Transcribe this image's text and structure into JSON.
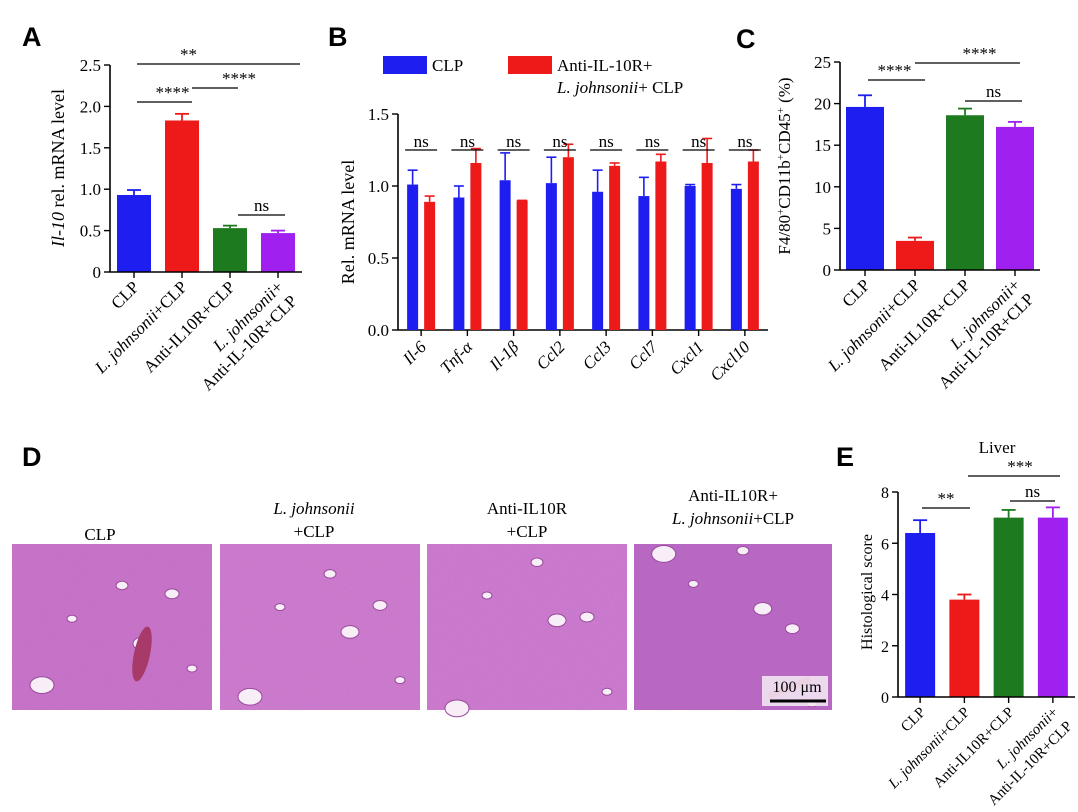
{
  "panel_letters": [
    "A",
    "B",
    "C",
    "D",
    "E"
  ],
  "colors": {
    "blue": "#1e1ef0",
    "red": "#ee1a1a",
    "green": "#1e7a1e",
    "purple": "#a020f0",
    "err": "#000000"
  },
  "chart_data": [
    {
      "panel": "A",
      "type": "bar",
      "ylabel_italic": "Il-10",
      "ylabel_rest": " rel. mRNA level",
      "ylim": [
        0,
        2.5
      ],
      "yticks": [
        "0",
        "0.5",
        "1.0",
        "1.5",
        "2.0",
        "2.5"
      ],
      "categories": [
        {
          "label": "CLP"
        },
        {
          "label_italic": "L. johnsonii",
          "label": "+CLP"
        },
        {
          "label": "Anti-IL10R+CLP"
        },
        {
          "label_italic": "L. johnsonii",
          "label": "+",
          "label2": "Anti-IL-10R+CLP"
        }
      ],
      "values": [
        0.93,
        1.83,
        0.53,
        0.47
      ],
      "errors": [
        0.06,
        0.08,
        0.03,
        0.03
      ],
      "significance": [
        {
          "text": "**",
          "from": 0,
          "to": 2
        },
        {
          "text": "****",
          "from": 1,
          "to": 2
        },
        {
          "text": "****",
          "from": 0,
          "to": 1
        },
        {
          "text": "ns",
          "from": 2,
          "to": 3
        }
      ]
    },
    {
      "panel": "B",
      "type": "bar",
      "ylabel": "Rel. mRNA level",
      "ylim": [
        0,
        1.5
      ],
      "yticks": [
        "0.0",
        "0.5",
        "1.0",
        "1.5"
      ],
      "legend": [
        {
          "name": "CLP"
        },
        {
          "name": "Anti-IL-10R+",
          "name_italic": "L. johnsonii",
          "name_rest": "+ CLP"
        }
      ],
      "categories": [
        "Il-6",
        "Tnf-α",
        "Il-1β",
        "Ccl2",
        "Ccl3",
        "Ccl7",
        "Cxcl1",
        "Cxcl10"
      ],
      "series": [
        {
          "name": "CLP",
          "values": [
            1.01,
            0.92,
            1.04,
            1.02,
            0.96,
            0.93,
            1.0,
            0.98
          ],
          "errors": [
            0.1,
            0.08,
            0.19,
            0.18,
            0.15,
            0.13,
            0.01,
            0.03
          ]
        },
        {
          "name": "Anti-IL-10R+L. johnsonii+ CLP",
          "values": [
            0.89,
            1.16,
            0.9,
            1.2,
            1.14,
            1.17,
            1.16,
            1.17
          ],
          "errors": [
            0.04,
            0.1,
            0.0,
            0.09,
            0.02,
            0.05,
            0.17,
            0.08
          ]
        }
      ],
      "significance": [
        "ns",
        "ns",
        "ns",
        "ns",
        "ns",
        "ns",
        "ns",
        "ns"
      ]
    },
    {
      "panel": "C",
      "type": "bar",
      "ylabel_parts": [
        {
          "t": "F4/80"
        },
        {
          "t": "+",
          "sup": true
        },
        {
          "t": "CD11b"
        },
        {
          "t": "+",
          "sup": true
        },
        {
          "t": "CD45"
        },
        {
          "t": "+",
          "sup": true
        },
        {
          "t": " (%)"
        }
      ],
      "ylim": [
        0,
        25
      ],
      "yticks": [
        "0",
        "5",
        "10",
        "15",
        "20",
        "25"
      ],
      "categories": [
        {
          "label": "CLP"
        },
        {
          "label_italic": "L. johnsonii",
          "label": "+CLP"
        },
        {
          "label": "Anti-IL10R+CLP"
        },
        {
          "label_italic": "L. johnsonii",
          "label": "+",
          "label2": "Anti-IL-10R+CLP"
        }
      ],
      "values": [
        19.6,
        3.5,
        18.6,
        17.2
      ],
      "errors": [
        1.4,
        0.4,
        0.8,
        0.6
      ],
      "significance": [
        {
          "text": "****",
          "from": 0,
          "to": 1
        },
        {
          "text": "****",
          "from": 1,
          "to": 3
        },
        {
          "text": "ns",
          "from": 2,
          "to": 3
        }
      ]
    },
    {
      "panel": "E",
      "type": "bar",
      "title": "Liver",
      "ylabel": "Histological score",
      "ylim": [
        0,
        8
      ],
      "yticks": [
        "0",
        "2",
        "4",
        "6",
        "8"
      ],
      "categories": [
        {
          "label": "CLP"
        },
        {
          "label_italic": "L. johnsonii",
          "label": "+CLP"
        },
        {
          "label": "Anti-IL10R+CLP"
        },
        {
          "label_italic": "L. johnsonii",
          "label": "+",
          "label2": "Anti-IL-10R+CLP"
        }
      ],
      "values": [
        6.4,
        3.8,
        7.0,
        7.0
      ],
      "errors": [
        0.5,
        0.2,
        0.3,
        0.4
      ],
      "significance": [
        {
          "text": "**",
          "from": 0,
          "to": 1
        },
        {
          "text": "***",
          "from": 1,
          "to": 3
        },
        {
          "text": "ns",
          "from": 2,
          "to": 3
        }
      ]
    }
  ],
  "histology": {
    "panels": [
      {
        "name": "clp",
        "title_lines": [
          {
            "t": "CLP"
          }
        ]
      },
      {
        "name": "ljohnsonii-clp",
        "title_lines": [
          {
            "t": "L. johnsonii",
            "italic": true
          },
          {
            "t": "+CLP"
          }
        ]
      },
      {
        "name": "anti-il10r-clp",
        "title_lines": [
          {
            "t": "Anti-IL10R"
          },
          {
            "t": "+CLP"
          }
        ]
      },
      {
        "name": "anti-il10r-ljohnsonii-clp",
        "title_lines": [
          {
            "t": "Anti-IL10R+"
          },
          {
            "t": "L. johnsonii",
            "italic": true,
            "rest": "+CLP"
          }
        ]
      }
    ],
    "scale_bar": "100 μm",
    "tissue_color": "#c76fc4"
  }
}
